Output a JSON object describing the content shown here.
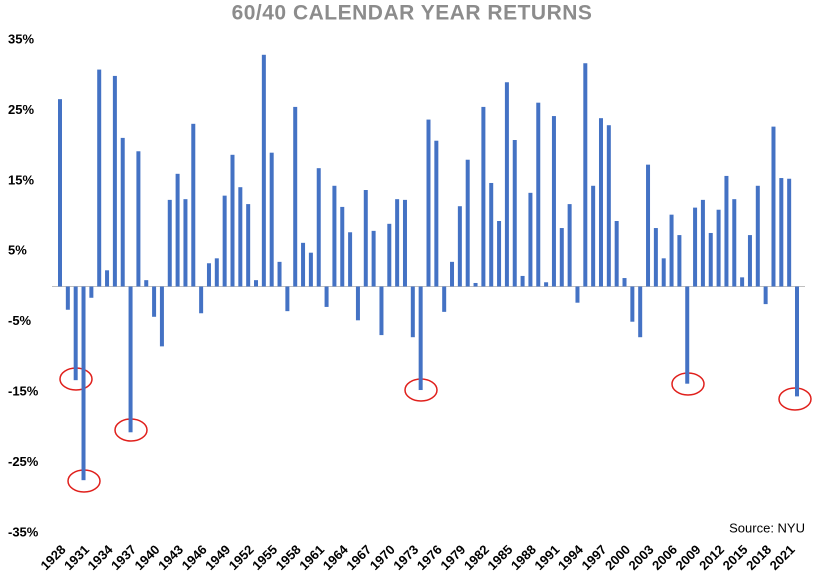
{
  "chart_data": {
    "type": "bar",
    "title": "60/40 CALENDAR YEAR RETURNS",
    "source": "Source: NYU",
    "categories": [
      "1928",
      null,
      null,
      "1931",
      null,
      null,
      "1934",
      null,
      null,
      "1937",
      null,
      null,
      "1940",
      null,
      null,
      "1943",
      null,
      null,
      "1946",
      null,
      null,
      "1949",
      null,
      null,
      "1952",
      null,
      null,
      "1955",
      null,
      null,
      "1958",
      null,
      null,
      "1961",
      null,
      null,
      "1964",
      null,
      null,
      "1967",
      null,
      null,
      "1970",
      null,
      null,
      "1973",
      null,
      null,
      "1976",
      null,
      null,
      "1979",
      null,
      null,
      "1982",
      null,
      null,
      "1985",
      null,
      null,
      "1988",
      null,
      null,
      "1991",
      null,
      null,
      "1994",
      null,
      null,
      "1997",
      null,
      null,
      "2000",
      null,
      null,
      "2003",
      null,
      null,
      "2006",
      null,
      null,
      "2009",
      null,
      null,
      "2012",
      null,
      null,
      "2015",
      null,
      null,
      "2018",
      null,
      null,
      "2021",
      null
    ],
    "values": [
      26.6,
      -3.3,
      -13.3,
      -27.5,
      -1.6,
      30.8,
      2.3,
      29.9,
      21.1,
      -20.7,
      19.2,
      0.9,
      -4.3,
      -8.5,
      12.3,
      16.0,
      12.4,
      23.1,
      -3.8,
      3.3,
      4.0,
      12.9,
      18.7,
      14.1,
      11.7,
      0.9,
      32.9,
      19.0,
      3.5,
      -3.5,
      25.5,
      6.2,
      4.8,
      16.8,
      -2.9,
      14.3,
      11.3,
      7.7,
      -4.8,
      13.7,
      7.9,
      -6.9,
      8.9,
      12.4,
      12.3,
      -7.2,
      -14.7,
      23.7,
      20.7,
      -3.6,
      3.5,
      11.4,
      18.0,
      0.5,
      25.5,
      14.7,
      9.3,
      29.0,
      20.8,
      1.5,
      13.3,
      26.1,
      0.6,
      24.2,
      8.3,
      11.7,
      -2.3,
      31.7,
      14.3,
      23.9,
      22.9,
      9.3,
      1.2,
      -5.0,
      -7.2,
      17.3,
      8.3,
      4.0,
      10.2,
      7.3,
      -13.8,
      11.2,
      12.3,
      7.6,
      10.9,
      15.7,
      12.4,
      1.3,
      7.3,
      14.3,
      -2.5,
      22.7,
      15.4,
      15.3,
      -15.6
    ],
    "color": "#4472c4",
    "ylim": [
      -35,
      35
    ],
    "yticks": [
      {
        "value": 35,
        "label": "35%"
      },
      {
        "value": 25,
        "label": "25%"
      },
      {
        "value": 15,
        "label": "15%"
      },
      {
        "value": 5,
        "label": "5%"
      },
      {
        "value": -5,
        "label": "-5%"
      },
      {
        "value": -15,
        "label": "-15%"
      },
      {
        "value": -25,
        "label": "-25%"
      },
      {
        "value": -35,
        "label": "-35%"
      }
    ],
    "grid": false
  }
}
